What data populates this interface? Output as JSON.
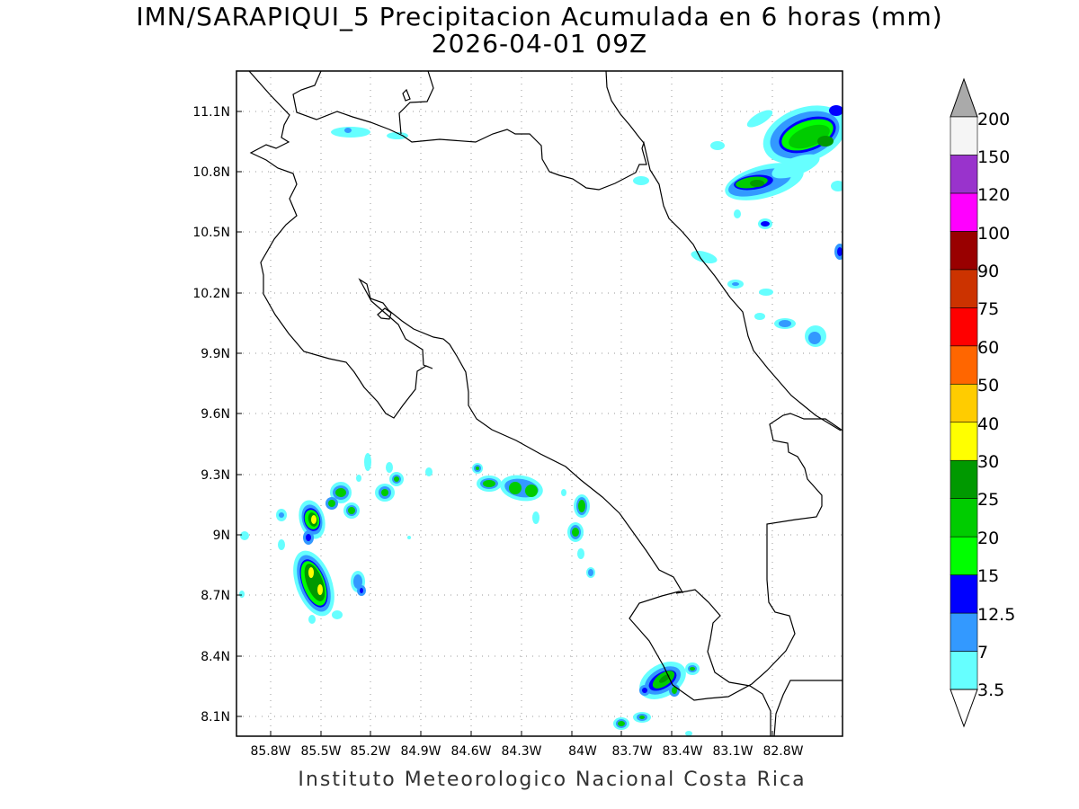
{
  "title": {
    "line1": "IMN/SARAPIQUI_5 Precipitacion Acumulada en 6 horas (mm)",
    "line2": "2026-04-01 09Z"
  },
  "footer": "Instituto Meteorologico Nacional Costa Rica",
  "axes": {
    "lon_ticks": [
      "85.8W",
      "85.5W",
      "85.2W",
      "84.9W",
      "84.6W",
      "84.3W",
      "84W",
      "83.7W",
      "83.4W",
      "83.1W",
      "82.8W"
    ],
    "lat_ticks": [
      "11.1N",
      "10.8N",
      "10.5N",
      "10.2N",
      "9.9N",
      "9.6N",
      "9.3N",
      "9N",
      "8.7N",
      "8.4N",
      "8.1N"
    ]
  },
  "colorbar": {
    "labels": [
      "3.5",
      "7",
      "12.5",
      "15",
      "20",
      "25",
      "30",
      "40",
      "50",
      "60",
      "75",
      "90",
      "100",
      "120",
      "150",
      "200"
    ],
    "colors": [
      "#66ffff",
      "#3399ff",
      "#0000ff",
      "#00ff00",
      "#00cc00",
      "#009900",
      "#ffff00",
      "#ffcc00",
      "#ff6600",
      "#ff0000",
      "#cc3300",
      "#990000",
      "#ff00ff",
      "#9933cc",
      "#f5f5f5",
      "#aaaaaa"
    ]
  }
}
